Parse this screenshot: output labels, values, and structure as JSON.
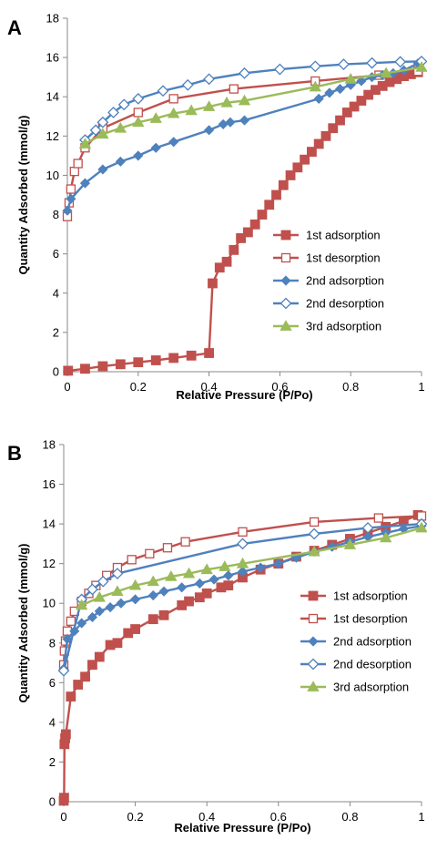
{
  "chart_data": [
    {
      "type": "line",
      "panel": "A",
      "xlabel": "Relative Pressure (P/Po)",
      "ylabel": "Quantity Adsorbed (mmol/g)",
      "xlim": [
        0,
        1
      ],
      "ylim": [
        0,
        18
      ],
      "xticks": [
        0,
        0.2,
        0.4,
        0.6,
        0.8,
        1
      ],
      "xtick_labels": [
        "0",
        "0.2",
        "0.4",
        "0.6",
        "0.8",
        "1"
      ],
      "yticks": [
        0,
        2,
        4,
        6,
        8,
        10,
        12,
        14,
        16,
        18
      ],
      "ytick_labels": [
        "0",
        "2",
        "4",
        "6",
        "8",
        "10",
        "12",
        "14",
        "16",
        "18"
      ],
      "grid": false,
      "legend_position": "right",
      "series": [
        {
          "name": "1st adsorption",
          "color": "#c0504d",
          "marker": "square-filled",
          "x": [
            0.002,
            0.05,
            0.1,
            0.15,
            0.2,
            0.25,
            0.3,
            0.35,
            0.4,
            0.41,
            0.43,
            0.45,
            0.47,
            0.49,
            0.51,
            0.53,
            0.55,
            0.57,
            0.59,
            0.61,
            0.63,
            0.65,
            0.67,
            0.69,
            0.71,
            0.73,
            0.75,
            0.77,
            0.79,
            0.81,
            0.83,
            0.85,
            0.87,
            0.89,
            0.91,
            0.93,
            0.95,
            0.97,
            0.99
          ],
          "y": [
            0.05,
            0.15,
            0.28,
            0.38,
            0.48,
            0.58,
            0.7,
            0.82,
            0.95,
            4.5,
            5.3,
            5.6,
            6.2,
            6.8,
            7.1,
            7.5,
            8.0,
            8.5,
            9.0,
            9.5,
            10.0,
            10.4,
            10.8,
            11.2,
            11.6,
            12.0,
            12.4,
            12.8,
            13.2,
            13.5,
            13.8,
            14.1,
            14.35,
            14.55,
            14.75,
            14.9,
            15.05,
            15.15,
            15.25
          ]
        },
        {
          "name": "1st desorption",
          "color": "#c0504d",
          "marker": "square-open",
          "x": [
            0.0,
            0.005,
            0.01,
            0.02,
            0.03,
            0.05,
            0.1,
            0.2,
            0.3,
            0.47,
            0.7,
            0.88,
            0.99
          ],
          "y": [
            7.9,
            8.6,
            9.3,
            10.2,
            10.6,
            11.4,
            12.4,
            13.2,
            13.9,
            14.4,
            14.8,
            15.1,
            15.3
          ]
        },
        {
          "name": "2nd adsorption",
          "color": "#4f81bd",
          "marker": "diamond-filled",
          "x": [
            0.0,
            0.01,
            0.05,
            0.1,
            0.15,
            0.2,
            0.25,
            0.3,
            0.4,
            0.44,
            0.46,
            0.5,
            0.71,
            0.74,
            0.77,
            0.8,
            0.83,
            0.86,
            0.89,
            0.92,
            0.95,
            0.99
          ],
          "y": [
            8.2,
            8.8,
            9.6,
            10.3,
            10.7,
            11.0,
            11.4,
            11.7,
            12.3,
            12.6,
            12.7,
            12.8,
            13.9,
            14.2,
            14.4,
            14.6,
            14.8,
            15.0,
            15.1,
            15.2,
            15.35,
            15.7
          ]
        },
        {
          "name": "2nd desorption",
          "color": "#4f81bd",
          "marker": "diamond-open",
          "x": [
            0.05,
            0.08,
            0.1,
            0.13,
            0.16,
            0.2,
            0.27,
            0.34,
            0.4,
            0.5,
            0.6,
            0.7,
            0.78,
            0.86,
            0.94,
            1.0
          ],
          "y": [
            11.8,
            12.3,
            12.7,
            13.2,
            13.6,
            13.9,
            14.3,
            14.6,
            14.9,
            15.2,
            15.4,
            15.55,
            15.65,
            15.72,
            15.78,
            15.8
          ]
        },
        {
          "name": "3rd adsorption",
          "color": "#9bbb59",
          "marker": "triangle-filled",
          "x": [
            0.05,
            0.1,
            0.15,
            0.2,
            0.25,
            0.3,
            0.35,
            0.4,
            0.45,
            0.5,
            0.7,
            0.8,
            0.9,
            1.0
          ],
          "y": [
            11.6,
            12.1,
            12.4,
            12.7,
            12.9,
            13.15,
            13.3,
            13.5,
            13.7,
            13.8,
            14.5,
            14.9,
            15.2,
            15.5
          ]
        }
      ]
    },
    {
      "type": "line",
      "panel": "B",
      "xlabel": "Relative Pressure (P/Po)",
      "ylabel": "Quantity Adsorbed (mmol/g)",
      "xlim": [
        0,
        1
      ],
      "ylim": [
        0,
        18
      ],
      "xticks": [
        0,
        0.2,
        0.4,
        0.6,
        0.8,
        1
      ],
      "xtick_labels": [
        "0",
        "0.2",
        "0.4",
        "0.6",
        "0.8",
        "1"
      ],
      "yticks": [
        0,
        2,
        4,
        6,
        8,
        10,
        12,
        14,
        16,
        18
      ],
      "ytick_labels": [
        "0",
        "2",
        "4",
        "6",
        "8",
        "10",
        "12",
        "14",
        "16",
        "18"
      ],
      "grid": false,
      "legend_position": "right",
      "series": [
        {
          "name": "1st adsorption",
          "color": "#c0504d",
          "marker": "square-filled",
          "x": [
            0.0,
            0.001,
            0.002,
            0.004,
            0.006,
            0.02,
            0.04,
            0.06,
            0.08,
            0.1,
            0.13,
            0.15,
            0.18,
            0.2,
            0.25,
            0.28,
            0.33,
            0.35,
            0.38,
            0.4,
            0.44,
            0.46,
            0.5,
            0.55,
            0.6,
            0.65,
            0.7,
            0.75,
            0.8,
            0.85,
            0.9,
            0.95,
            0.99
          ],
          "y": [
            0.05,
            0.2,
            2.9,
            3.2,
            3.4,
            5.3,
            5.9,
            6.3,
            6.9,
            7.3,
            7.9,
            8.0,
            8.5,
            8.7,
            9.2,
            9.4,
            9.9,
            10.1,
            10.3,
            10.5,
            10.8,
            10.9,
            11.3,
            11.7,
            12.0,
            12.35,
            12.65,
            12.95,
            13.25,
            13.55,
            13.85,
            14.15,
            14.45
          ]
        },
        {
          "name": "1st desorption",
          "color": "#c0504d",
          "marker": "square-open",
          "x": [
            0.0,
            0.002,
            0.005,
            0.01,
            0.02,
            0.03,
            0.05,
            0.07,
            0.09,
            0.12,
            0.15,
            0.19,
            0.24,
            0.29,
            0.34,
            0.5,
            0.7,
            0.88,
            1.0
          ],
          "y": [
            6.9,
            7.6,
            8.1,
            8.6,
            9.1,
            9.6,
            10.1,
            10.5,
            10.9,
            11.4,
            11.8,
            12.2,
            12.5,
            12.8,
            13.1,
            13.6,
            14.1,
            14.3,
            14.4
          ]
        },
        {
          "name": "2nd adsorption",
          "color": "#4f81bd",
          "marker": "diamond-filled",
          "x": [
            0.0,
            0.01,
            0.03,
            0.05,
            0.08,
            0.1,
            0.13,
            0.16,
            0.2,
            0.25,
            0.28,
            0.33,
            0.38,
            0.42,
            0.46,
            0.5,
            0.55,
            0.6,
            0.65,
            0.7,
            0.75,
            0.8,
            0.85,
            0.9,
            0.95,
            1.0
          ],
          "y": [
            6.7,
            8.2,
            8.6,
            9.0,
            9.3,
            9.6,
            9.8,
            10.0,
            10.2,
            10.4,
            10.6,
            10.8,
            11.0,
            11.2,
            11.4,
            11.6,
            11.8,
            12.0,
            12.3,
            12.6,
            12.85,
            13.1,
            13.35,
            13.55,
            13.75,
            13.9
          ]
        },
        {
          "name": "2nd desorption",
          "color": "#4f81bd",
          "marker": "diamond-open",
          "x": [
            0.0,
            0.05,
            0.08,
            0.11,
            0.15,
            0.5,
            0.7,
            0.85,
            1.0
          ],
          "y": [
            6.6,
            10.2,
            10.7,
            11.1,
            11.5,
            13.0,
            13.5,
            13.8,
            14.0
          ]
        },
        {
          "name": "3rd adsorption",
          "color": "#9bbb59",
          "marker": "triangle-filled",
          "x": [
            0.05,
            0.1,
            0.15,
            0.2,
            0.25,
            0.3,
            0.35,
            0.4,
            0.45,
            0.5,
            0.7,
            0.8,
            0.9,
            1.0
          ],
          "y": [
            9.9,
            10.3,
            10.6,
            10.9,
            11.1,
            11.35,
            11.5,
            11.7,
            11.85,
            12.0,
            12.6,
            12.95,
            13.3,
            13.8
          ]
        }
      ]
    }
  ]
}
